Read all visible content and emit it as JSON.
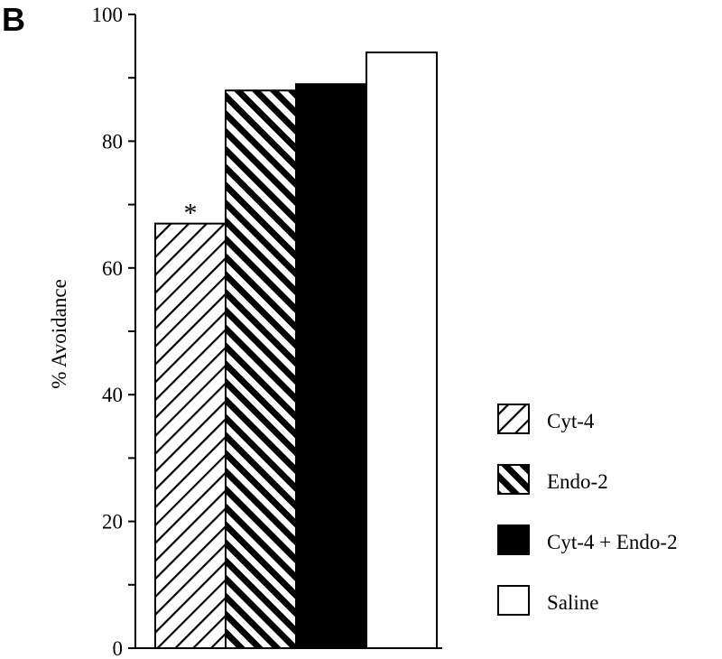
{
  "panel_label": "B",
  "chart_data": {
    "type": "bar",
    "title": "",
    "xlabel": "",
    "ylabel": "% Avoidance",
    "ylim": [
      0,
      100
    ],
    "yticks": [
      0,
      20,
      40,
      60,
      80,
      100
    ],
    "yticklabels": [
      "0",
      "20",
      "40",
      "60",
      "80",
      "100"
    ],
    "grid": false,
    "legend_position": "right",
    "series": [
      {
        "name": "Cyt-4",
        "value": 67,
        "fill": "sparse-diagonal-hatch",
        "annotation": "*"
      },
      {
        "name": "Endo-2",
        "value": 88,
        "fill": "bold-diagonal-hatch",
        "annotation": ""
      },
      {
        "name": "Cyt-4 + Endo-2",
        "value": 89,
        "fill": "solid-black",
        "annotation": ""
      },
      {
        "name": "Saline",
        "value": 94,
        "fill": "white",
        "annotation": ""
      }
    ],
    "colors": {
      "axis": "#000000",
      "ink": "#000000",
      "paper": "#ffffff"
    }
  }
}
